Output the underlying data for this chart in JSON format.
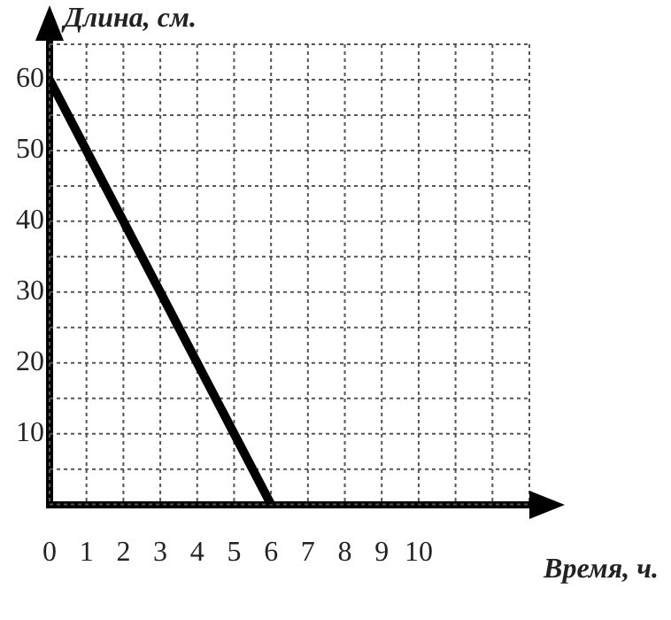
{
  "chart_data": {
    "type": "line",
    "xlabel": "Время, ч.",
    "ylabel": "Длина, см.",
    "series": [
      {
        "color": "#000000",
        "x": [
          0,
          6
        ],
        "values": [
          60,
          0
        ]
      }
    ],
    "xlim": [
      0,
      13
    ],
    "xticks": [
      0,
      1,
      2,
      3,
      4,
      5,
      6,
      7,
      8,
      9,
      10,
      {
        "value": 11,
        "label": null
      },
      {
        "value": 12,
        "label": null
      },
      {
        "value": 13,
        "label": null
      }
    ],
    "ylim": [
      0,
      65
    ],
    "yticks": [
      {
        "value": 0,
        "label": null
      },
      {
        "value": 5,
        "label": null
      },
      10,
      {
        "value": 15,
        "label": null
      },
      20,
      {
        "value": 25,
        "label": null
      },
      30,
      {
        "value": 35,
        "label": null
      },
      40,
      {
        "value": 45,
        "label": null
      },
      50,
      {
        "value": 55,
        "label": null
      },
      60,
      {
        "value": 65,
        "label": null
      }
    ],
    "grid": true,
    "marker": "none",
    "line_style": "solid",
    "legend": false
  }
}
